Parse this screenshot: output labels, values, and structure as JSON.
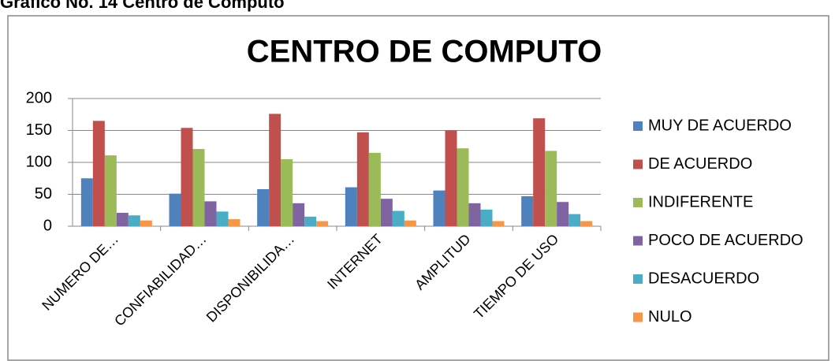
{
  "caption": "Grafico No. 14 Centro de Computo",
  "chart_data": {
    "type": "bar",
    "title": "CENTRO DE COMPUTO",
    "categories": [
      "NUMERO DE…",
      "CONFIABILIDAD…",
      "DISPONIBILIDA…",
      "INTERNET",
      "AMPLITUD",
      "TIEMPO DE USO"
    ],
    "series": [
      {
        "name": "MUY DE ACUERDO",
        "color": "#4f81bd",
        "values": [
          75,
          51,
          58,
          61,
          56,
          47
        ]
      },
      {
        "name": "DE ACUERDO",
        "color": "#c0504d",
        "values": [
          165,
          154,
          176,
          147,
          150,
          169
        ]
      },
      {
        "name": "INDIFERENTE",
        "color": "#9bbb59",
        "values": [
          111,
          121,
          105,
          115,
          122,
          118
        ]
      },
      {
        "name": "POCO DE ACUERDO",
        "color": "#8064a2",
        "values": [
          21,
          39,
          36,
          43,
          36,
          38
        ]
      },
      {
        "name": "DESACUERDO",
        "color": "#4bacc6",
        "values": [
          17,
          23,
          15,
          24,
          26,
          19
        ]
      },
      {
        "name": "NULO",
        "color": "#f79646",
        "values": [
          9,
          11,
          8,
          9,
          8,
          8
        ]
      }
    ],
    "ylim": [
      0,
      200
    ],
    "yticks": [
      0,
      50,
      100,
      150,
      200
    ],
    "grid": true,
    "legend": "right"
  }
}
